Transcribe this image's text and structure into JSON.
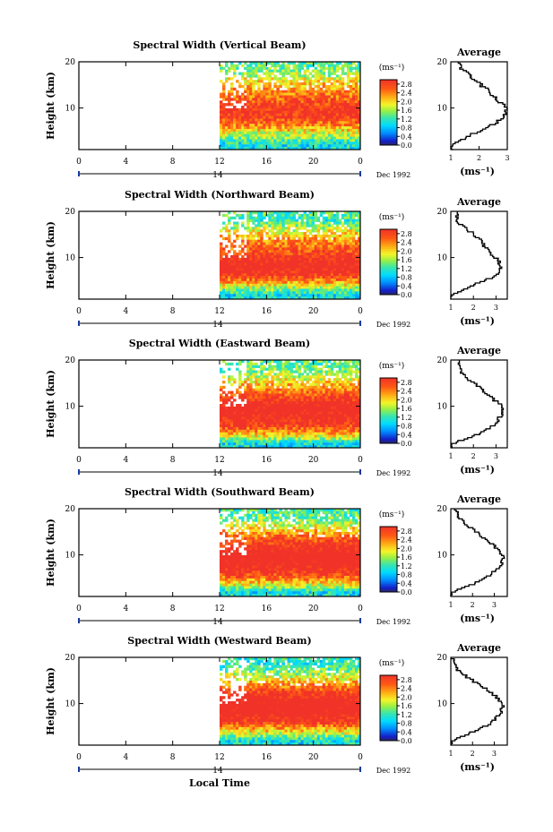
{
  "figure": {
    "bottom_label": "Local Time",
    "date_label": "Dec 1992",
    "day_label": "14"
  },
  "chart_data": [
    {
      "type": "heatmap",
      "title": "Spectral Width (Vertical Beam)",
      "ylabel": "Height (km)",
      "x_ticks": [
        "0",
        "4",
        "8",
        "12",
        "16",
        "20",
        "0"
      ],
      "y_ticks": [
        "20",
        "10"
      ],
      "x_range_hours": [
        0,
        24
      ],
      "data_start_hour": 12,
      "ylim_km": [
        1,
        20
      ],
      "colorbar": {
        "unit": "(ms⁻¹)",
        "ticks": [
          "2.8",
          "2.4",
          "2.0",
          "1.6",
          "1.2",
          "0.8",
          "0.4",
          "0.0"
        ],
        "range": [
          0,
          3.0
        ]
      },
      "avg_profile": {
        "title": "Average",
        "xlabel": "(ms⁻¹)",
        "x_ticks": [
          "1",
          "2",
          "3"
        ],
        "xlim": [
          1,
          3
        ],
        "heights_km": [
          2,
          4,
          6,
          8,
          10,
          12,
          14,
          16,
          18,
          20
        ],
        "values": [
          1.0,
          1.6,
          2.3,
          2.9,
          3.0,
          2.6,
          2.3,
          1.9,
          1.5,
          1.2
        ]
      }
    },
    {
      "type": "heatmap",
      "title": "Spectral Width (Northward Beam)",
      "ylabel": "Height (km)",
      "x_ticks": [
        "0",
        "4",
        "8",
        "12",
        "16",
        "20",
        "0"
      ],
      "y_ticks": [
        "20",
        "10"
      ],
      "x_range_hours": [
        0,
        24
      ],
      "data_start_hour": 12,
      "ylim_km": [
        1,
        20
      ],
      "colorbar": {
        "unit": "(ms⁻¹)",
        "ticks": [
          "2.8",
          "2.4",
          "2.0",
          "1.6",
          "1.2",
          "0.8",
          "0.4",
          "0.0"
        ],
        "range": [
          0,
          3.0
        ]
      },
      "avg_profile": {
        "title": "Average",
        "xlabel": "(ms⁻¹)",
        "x_ticks": [
          "1",
          "2",
          "3"
        ],
        "xlim": [
          1,
          3.5
        ],
        "heights_km": [
          2,
          4,
          6,
          8,
          10,
          12,
          14,
          16,
          18,
          20
        ],
        "values": [
          1.0,
          1.9,
          2.9,
          3.3,
          3.0,
          2.6,
          2.3,
          1.8,
          1.2,
          1.3
        ]
      }
    },
    {
      "type": "heatmap",
      "title": "Spectral Width (Eastward Beam)",
      "ylabel": "Height (km)",
      "x_ticks": [
        "0",
        "4",
        "8",
        "12",
        "16",
        "20",
        "0"
      ],
      "y_ticks": [
        "20",
        "10"
      ],
      "x_range_hours": [
        0,
        24
      ],
      "data_start_hour": 12,
      "ylim_km": [
        1,
        20
      ],
      "colorbar": {
        "unit": "(ms⁻¹)",
        "ticks": [
          "2.8",
          "2.4",
          "2.0",
          "1.6",
          "1.2",
          "0.8",
          "0.4",
          "0.0"
        ],
        "range": [
          0,
          3.0
        ]
      },
      "avg_profile": {
        "title": "Average",
        "xlabel": "(ms⁻¹)",
        "x_ticks": [
          "1",
          "2",
          "3"
        ],
        "xlim": [
          1,
          3.5
        ],
        "heights_km": [
          2,
          4,
          6,
          8,
          10,
          12,
          14,
          16,
          18,
          20
        ],
        "values": [
          1.0,
          2.2,
          2.9,
          3.2,
          3.3,
          2.8,
          2.3,
          1.8,
          1.4,
          1.3
        ]
      }
    },
    {
      "type": "heatmap",
      "title": "Spectral Width (Southward Beam)",
      "ylabel": "Height (km)",
      "x_ticks": [
        "0",
        "4",
        "8",
        "12",
        "16",
        "20",
        "0"
      ],
      "y_ticks": [
        "20",
        "10"
      ],
      "x_range_hours": [
        0,
        24
      ],
      "data_start_hour": 12,
      "ylim_km": [
        1,
        20
      ],
      "colorbar": {
        "unit": "(ms⁻¹)",
        "ticks": [
          "2.8",
          "2.4",
          "2.0",
          "1.6",
          "1.2",
          "0.8",
          "0.4",
          "0.0"
        ],
        "range": [
          0,
          3.0
        ]
      },
      "avg_profile": {
        "title": "Average",
        "xlabel": "(ms⁻¹)",
        "x_ticks": [
          "1",
          "2",
          "3"
        ],
        "xlim": [
          1,
          3.6
        ],
        "heights_km": [
          2,
          4,
          6,
          8,
          10,
          12,
          14,
          16,
          18,
          20
        ],
        "values": [
          1.0,
          2.1,
          2.9,
          3.3,
          3.4,
          3.0,
          2.5,
          1.9,
          1.4,
          1.2
        ]
      }
    },
    {
      "type": "heatmap",
      "title": "Spectral Width (Westward Beam)",
      "ylabel": "Height (km)",
      "x_ticks": [
        "0",
        "4",
        "8",
        "12",
        "16",
        "20",
        "0"
      ],
      "y_ticks": [
        "20",
        "10"
      ],
      "x_range_hours": [
        0,
        24
      ],
      "data_start_hour": 12,
      "ylim_km": [
        1,
        20
      ],
      "colorbar": {
        "unit": "(ms⁻¹)",
        "ticks": [
          "2.8",
          "2.4",
          "2.0",
          "1.6",
          "1.2",
          "0.8",
          "0.4",
          "0.0"
        ],
        "range": [
          0,
          3.0
        ]
      },
      "avg_profile": {
        "title": "Average",
        "xlabel": "(ms⁻¹)",
        "x_ticks": [
          "1",
          "2",
          "3"
        ],
        "xlim": [
          1,
          3.6
        ],
        "heights_km": [
          2,
          4,
          6,
          8,
          10,
          12,
          14,
          16,
          18,
          20
        ],
        "values": [
          1.0,
          2.0,
          2.9,
          3.3,
          3.4,
          3.0,
          2.4,
          1.7,
          1.2,
          1.1
        ]
      }
    }
  ]
}
